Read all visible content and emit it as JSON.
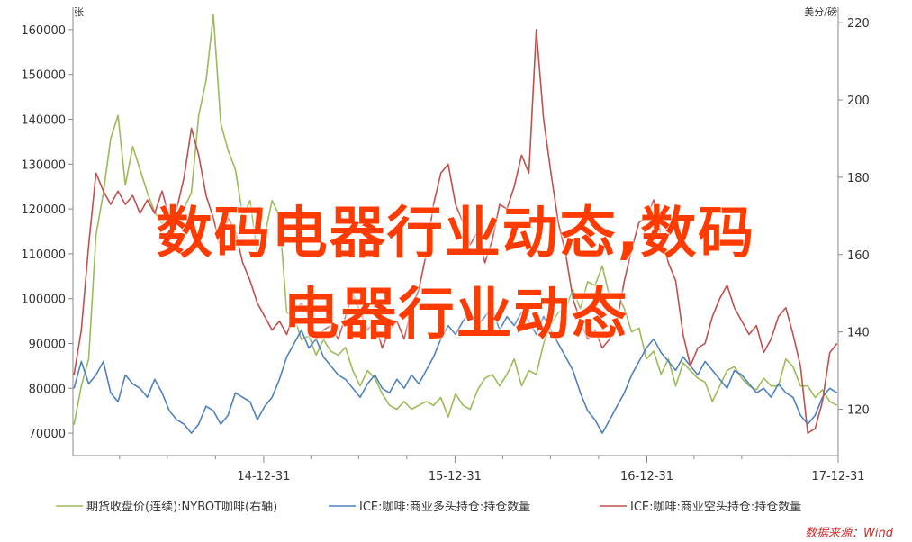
{
  "overlay": {
    "line1": "数码电器行业动态,数码",
    "line2": "电器行业动态"
  },
  "source": "数据来源：Wind",
  "chart_data": {
    "type": "line",
    "x_type": "date",
    "x_tick_labels": [
      "14-12-31",
      "15-12-31",
      "16-12-31",
      "17-12-31"
    ],
    "x_ticks": [
      "2014-12-31",
      "2015-12-31",
      "2016-12-31",
      "2017-12-31"
    ],
    "xlim": [
      "2014-01-01",
      "2017-12-31"
    ],
    "left_axis": {
      "unit": "张",
      "ylim": [
        65000,
        165000
      ],
      "ticks": [
        70000,
        80000,
        90000,
        100000,
        110000,
        120000,
        130000,
        140000,
        150000,
        160000
      ]
    },
    "right_axis": {
      "unit": "美分/磅",
      "ylim": [
        108,
        224
      ],
      "ticks": [
        120,
        140,
        160,
        180,
        200,
        220
      ]
    },
    "grid": false,
    "legend_position": "bottom",
    "colors": {
      "green": "#9bbb59",
      "blue": "#4f81bd",
      "red": "#c0504d"
    },
    "series": [
      {
        "name": "期货收盘价(连续):NYBOT咖啡(右轴)",
        "axis": "right",
        "color": "#9bbb59",
        "x": [
          "2014-01-03",
          "2014-01-17",
          "2014-01-31",
          "2014-02-14",
          "2014-02-28",
          "2014-03-14",
          "2014-03-28",
          "2014-04-11",
          "2014-04-25",
          "2014-05-09",
          "2014-05-23",
          "2014-06-06",
          "2014-06-20",
          "2014-07-04",
          "2014-07-18",
          "2014-08-01",
          "2014-08-15",
          "2014-08-29",
          "2014-09-12",
          "2014-09-26",
          "2014-10-10",
          "2014-10-24",
          "2014-11-07",
          "2014-11-21",
          "2014-12-05",
          "2014-12-19",
          "2015-01-02",
          "2015-01-16",
          "2015-01-30",
          "2015-02-13",
          "2015-02-27",
          "2015-03-13",
          "2015-03-27",
          "2015-04-10",
          "2015-04-24",
          "2015-05-08",
          "2015-05-22",
          "2015-06-05",
          "2015-06-19",
          "2015-07-03",
          "2015-07-17",
          "2015-07-31",
          "2015-08-14",
          "2015-08-28",
          "2015-09-11",
          "2015-09-25",
          "2015-10-09",
          "2015-10-23",
          "2015-11-06",
          "2015-11-20",
          "2015-12-04",
          "2015-12-18",
          "2016-01-01",
          "2016-01-15",
          "2016-01-29",
          "2016-02-12",
          "2016-02-26",
          "2016-03-11",
          "2016-03-25",
          "2016-04-08",
          "2016-04-22",
          "2016-05-06",
          "2016-05-20",
          "2016-06-03",
          "2016-06-17",
          "2016-07-01",
          "2016-07-15",
          "2016-07-29",
          "2016-08-12",
          "2016-08-26",
          "2016-09-09",
          "2016-09-23",
          "2016-10-07",
          "2016-10-21",
          "2016-11-04",
          "2016-11-18",
          "2016-12-02",
          "2016-12-16",
          "2016-12-30",
          "2017-01-13",
          "2017-01-27",
          "2017-02-10",
          "2017-02-24",
          "2017-03-10",
          "2017-03-24",
          "2017-04-07",
          "2017-04-21",
          "2017-05-05",
          "2017-05-19",
          "2017-06-02",
          "2017-06-16",
          "2017-06-30",
          "2017-07-14",
          "2017-07-28",
          "2017-08-11",
          "2017-08-25",
          "2017-09-08",
          "2017-09-22",
          "2017-10-06",
          "2017-10-20",
          "2017-11-03",
          "2017-11-17",
          "2017-12-01",
          "2017-12-15",
          "2017-12-29"
        ],
        "values": [
          116,
          126,
          133,
          165,
          176,
          190,
          196,
          178,
          188,
          182,
          176,
          171,
          168,
          172,
          169,
          172,
          176,
          196,
          205,
          222,
          194,
          187,
          182,
          170,
          174,
          160,
          165,
          174,
          170,
          145,
          144,
          138,
          139,
          134,
          138,
          135,
          134,
          136,
          130,
          126,
          130,
          128,
          124,
          121,
          120,
          122,
          120,
          121,
          122,
          121,
          123,
          118,
          124,
          121,
          120,
          125,
          128,
          129,
          126,
          129,
          133,
          126,
          130,
          129,
          137,
          142,
          145,
          146,
          151,
          146,
          153,
          152,
          157,
          149,
          150,
          146,
          140,
          141,
          133,
          135,
          129,
          133,
          126,
          132,
          130,
          128,
          127,
          122,
          126,
          130,
          131,
          128,
          126,
          125,
          128,
          126,
          126,
          133,
          131,
          126,
          126,
          123,
          125,
          122,
          121
        ]
      },
      {
        "name": "ICE:咖啡:商业多头持仓:持仓数量",
        "axis": "left",
        "color": "#4f81bd",
        "x": [
          "2014-01-03",
          "2014-01-17",
          "2014-01-31",
          "2014-02-14",
          "2014-02-28",
          "2014-03-14",
          "2014-03-28",
          "2014-04-11",
          "2014-04-25",
          "2014-05-09",
          "2014-05-23",
          "2014-06-06",
          "2014-06-20",
          "2014-07-04",
          "2014-07-18",
          "2014-08-01",
          "2014-08-15",
          "2014-08-29",
          "2014-09-12",
          "2014-09-26",
          "2014-10-10",
          "2014-10-24",
          "2014-11-07",
          "2014-11-21",
          "2014-12-05",
          "2014-12-19",
          "2015-01-02",
          "2015-01-16",
          "2015-01-30",
          "2015-02-13",
          "2015-02-27",
          "2015-03-13",
          "2015-03-27",
          "2015-04-10",
          "2015-04-24",
          "2015-05-08",
          "2015-05-22",
          "2015-06-05",
          "2015-06-19",
          "2015-07-03",
          "2015-07-17",
          "2015-07-31",
          "2015-08-14",
          "2015-08-28",
          "2015-09-11",
          "2015-09-25",
          "2015-10-09",
          "2015-10-23",
          "2015-11-06",
          "2015-11-20",
          "2015-12-04",
          "2015-12-18",
          "2016-01-01",
          "2016-01-15",
          "2016-01-29",
          "2016-02-12",
          "2016-02-26",
          "2016-03-11",
          "2016-03-25",
          "2016-04-08",
          "2016-04-22",
          "2016-05-06",
          "2016-05-20",
          "2016-06-03",
          "2016-06-17",
          "2016-07-01",
          "2016-07-15",
          "2016-07-29",
          "2016-08-12",
          "2016-08-26",
          "2016-09-09",
          "2016-09-23",
          "2016-10-07",
          "2016-10-21",
          "2016-11-04",
          "2016-11-18",
          "2016-12-02",
          "2016-12-16",
          "2016-12-30",
          "2017-01-13",
          "2017-01-27",
          "2017-02-10",
          "2017-02-24",
          "2017-03-10",
          "2017-03-24",
          "2017-04-07",
          "2017-04-21",
          "2017-05-05",
          "2017-05-19",
          "2017-06-02",
          "2017-06-16",
          "2017-06-30",
          "2017-07-14",
          "2017-07-28",
          "2017-08-11",
          "2017-08-25",
          "2017-09-08",
          "2017-09-22",
          "2017-10-06",
          "2017-10-20",
          "2017-11-03",
          "2017-11-17",
          "2017-12-01",
          "2017-12-15",
          "2017-12-29"
        ],
        "values": [
          80000,
          86000,
          81000,
          83000,
          86000,
          79000,
          77000,
          83000,
          81000,
          80000,
          78000,
          82000,
          79000,
          75000,
          73000,
          72000,
          70000,
          72000,
          76000,
          75000,
          72000,
          74000,
          79000,
          78000,
          77000,
          73000,
          76000,
          78000,
          82000,
          87000,
          90000,
          93000,
          89000,
          91000,
          87000,
          85000,
          83000,
          82000,
          80000,
          78000,
          81000,
          83000,
          80000,
          79000,
          82000,
          80000,
          83000,
          81000,
          84000,
          87000,
          91000,
          94000,
          92000,
          95000,
          97000,
          94000,
          96000,
          98000,
          93000,
          96000,
          94000,
          97000,
          95000,
          92000,
          96000,
          93000,
          90000,
          87000,
          84000,
          79000,
          75000,
          73000,
          70000,
          73000,
          76000,
          79000,
          83000,
          86000,
          89000,
          91000,
          88000,
          86000,
          84000,
          87000,
          85000,
          83000,
          86000,
          84000,
          82000,
          80000,
          84000,
          83000,
          81000,
          79000,
          80000,
          78000,
          81000,
          79000,
          78000,
          74000,
          72000,
          74000,
          78000,
          80000,
          79000
        ]
      },
      {
        "name": "ICE:咖啡:商业空头持仓:持仓数量",
        "axis": "left",
        "color": "#c0504d",
        "x": [
          "2014-01-03",
          "2014-01-17",
          "2014-01-31",
          "2014-02-14",
          "2014-02-28",
          "2014-03-14",
          "2014-03-28",
          "2014-04-11",
          "2014-04-25",
          "2014-05-09",
          "2014-05-23",
          "2014-06-06",
          "2014-06-20",
          "2014-07-04",
          "2014-07-18",
          "2014-08-01",
          "2014-08-15",
          "2014-08-29",
          "2014-09-12",
          "2014-09-26",
          "2014-10-10",
          "2014-10-24",
          "2014-11-07",
          "2014-11-21",
          "2014-12-05",
          "2014-12-19",
          "2015-01-02",
          "2015-01-16",
          "2015-01-30",
          "2015-02-13",
          "2015-02-27",
          "2015-03-13",
          "2015-03-27",
          "2015-04-10",
          "2015-04-24",
          "2015-05-08",
          "2015-05-22",
          "2015-06-05",
          "2015-06-19",
          "2015-07-03",
          "2015-07-17",
          "2015-07-31",
          "2015-08-14",
          "2015-08-28",
          "2015-09-11",
          "2015-09-25",
          "2015-10-09",
          "2015-10-23",
          "2015-11-06",
          "2015-11-20",
          "2015-12-04",
          "2015-12-18",
          "2016-01-01",
          "2016-01-15",
          "2016-01-29",
          "2016-02-12",
          "2016-02-26",
          "2016-03-11",
          "2016-03-25",
          "2016-04-08",
          "2016-04-22",
          "2016-05-06",
          "2016-05-20",
          "2016-06-03",
          "2016-06-17",
          "2016-07-01",
          "2016-07-15",
          "2016-07-29",
          "2016-08-12",
          "2016-08-26",
          "2016-09-09",
          "2016-09-23",
          "2016-10-07",
          "2016-10-21",
          "2016-11-04",
          "2016-11-18",
          "2016-12-02",
          "2016-12-16",
          "2016-12-30",
          "2017-01-13",
          "2017-01-27",
          "2017-02-10",
          "2017-02-24",
          "2017-03-10",
          "2017-03-24",
          "2017-04-07",
          "2017-04-21",
          "2017-05-05",
          "2017-05-19",
          "2017-06-02",
          "2017-06-16",
          "2017-06-30",
          "2017-07-14",
          "2017-07-28",
          "2017-08-11",
          "2017-08-25",
          "2017-09-08",
          "2017-09-22",
          "2017-10-06",
          "2017-10-20",
          "2017-11-03",
          "2017-11-17",
          "2017-12-01",
          "2017-12-15",
          "2017-12-29"
        ],
        "values": [
          83000,
          93000,
          112000,
          128000,
          124000,
          121000,
          124000,
          121000,
          123000,
          119000,
          122000,
          119000,
          124000,
          118000,
          120000,
          127000,
          138000,
          132000,
          123000,
          118000,
          111000,
          118000,
          115000,
          108000,
          104000,
          99000,
          96000,
          93000,
          95000,
          92000,
          97000,
          99000,
          96000,
          91000,
          93000,
          94000,
          91000,
          96000,
          101000,
          97000,
          93000,
          95000,
          89000,
          93000,
          95000,
          91000,
          98000,
          102000,
          110000,
          121000,
          128000,
          130000,
          121000,
          117000,
          112000,
          115000,
          108000,
          113000,
          121000,
          120000,
          125000,
          132000,
          128000,
          160000,
          140000,
          128000,
          117000,
          110000,
          100000,
          95000,
          91000,
          93000,
          89000,
          91000,
          95000,
          104000,
          111000,
          117000,
          118000,
          122000,
          114000,
          108000,
          104000,
          92000,
          85000,
          89000,
          90000,
          96000,
          100000,
          103000,
          98000,
          95000,
          92000,
          94000,
          88000,
          91000,
          96000,
          98000,
          92000,
          85000,
          70000,
          71000,
          77000,
          88000,
          90000
        ]
      }
    ]
  }
}
